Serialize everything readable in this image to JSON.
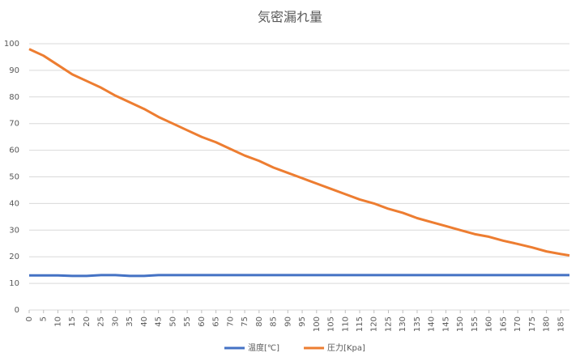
{
  "chart_data": {
    "type": "line",
    "title": "気密漏れ量",
    "x": [
      0,
      5,
      10,
      15,
      20,
      25,
      30,
      35,
      40,
      45,
      50,
      55,
      60,
      65,
      70,
      75,
      80,
      85,
      90,
      95,
      100,
      105,
      110,
      115,
      120,
      125,
      130,
      135,
      140,
      145,
      150,
      155,
      160,
      165,
      170,
      175,
      180,
      185,
      188
    ],
    "series": [
      {
        "name": "温度[℃]",
        "color": "#4472c4",
        "values": [
          13,
          13,
          13,
          12.8,
          12.8,
          13.1,
          13.1,
          12.8,
          12.8,
          13.1,
          13.1,
          13.1,
          13.1,
          13.1,
          13.1,
          13.1,
          13.1,
          13.1,
          13.1,
          13.1,
          13.1,
          13.1,
          13.1,
          13.1,
          13.1,
          13.1,
          13.1,
          13.1,
          13.1,
          13.1,
          13.1,
          13.1,
          13.1,
          13.1,
          13.1,
          13.1,
          13.1,
          13.1,
          13.1
        ]
      },
      {
        "name": "圧力[Kpa]",
        "color": "#ed7d31",
        "values": [
          98,
          95.5,
          92,
          88.5,
          86,
          83.5,
          80.5,
          78,
          75.5,
          72.5,
          70,
          67.5,
          65,
          63,
          60.5,
          58,
          56,
          53.5,
          51.5,
          49.5,
          47.5,
          45.5,
          43.5,
          41.5,
          40,
          38,
          36.5,
          34.5,
          33,
          31.5,
          30,
          28.5,
          27.5,
          26,
          24.8,
          23.5,
          22,
          21,
          20.5
        ]
      }
    ],
    "xlim": [
      0,
      188
    ],
    "xticks": [
      0,
      5,
      10,
      15,
      20,
      25,
      30,
      35,
      40,
      45,
      50,
      55,
      60,
      65,
      70,
      75,
      80,
      85,
      90,
      95,
      100,
      105,
      110,
      115,
      120,
      125,
      130,
      135,
      140,
      145,
      150,
      155,
      160,
      165,
      170,
      175,
      180,
      185
    ],
    "ylim": [
      0,
      100
    ],
    "yticks": [
      0,
      10,
      20,
      30,
      40,
      50,
      60,
      70,
      80,
      90,
      100
    ],
    "grid": true,
    "legend": "bottom"
  }
}
